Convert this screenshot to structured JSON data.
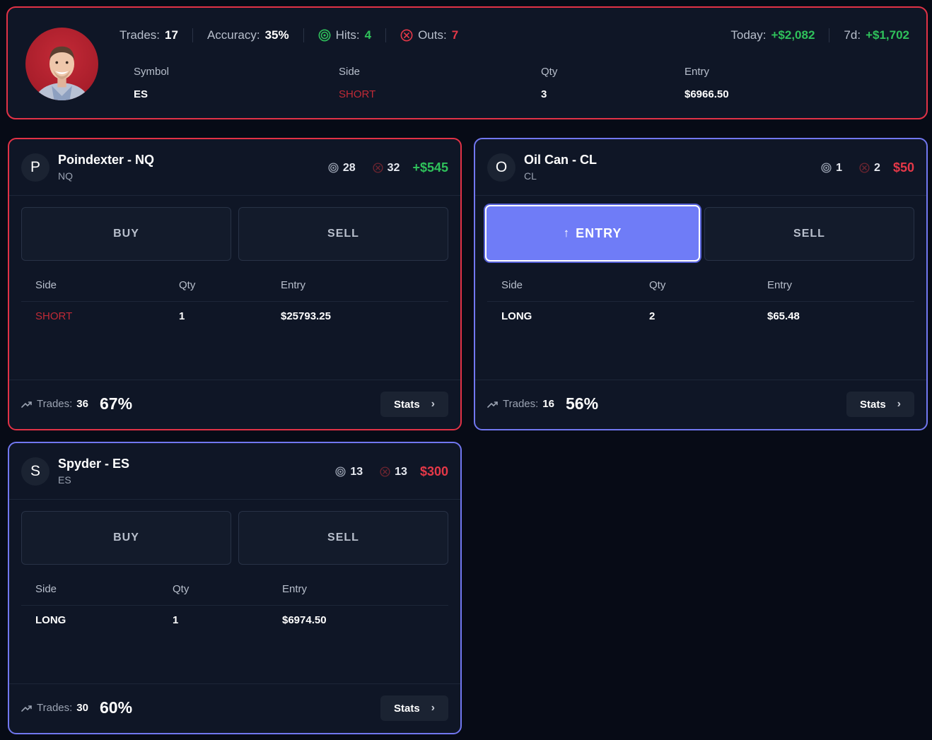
{
  "summary": {
    "trades_label": "Trades:",
    "trades_value": "17",
    "accuracy_label": "Accuracy:",
    "accuracy_value": "35%",
    "hits_label": "Hits:",
    "hits_value": "4",
    "outs_label": "Outs:",
    "outs_value": "7",
    "today_label": "Today:",
    "today_value": "+$2,082",
    "week_label": "7d:",
    "week_value": "+$1,702",
    "columns": {
      "symbol": "Symbol",
      "side": "Side",
      "qty": "Qty",
      "entry": "Entry"
    },
    "position": {
      "symbol": "ES",
      "side": "SHORT",
      "qty": "3",
      "entry": "$6966.50"
    }
  },
  "colors": {
    "red": "#e23246",
    "blue": "#7177f0",
    "green": "#2fc15b",
    "short": "#c02a36"
  },
  "cards": [
    {
      "initial": "P",
      "name": "Poindexter - NQ",
      "symbol": "NQ",
      "hits": "28",
      "outs": "32",
      "pnl": "+$545",
      "buy_label": "BUY",
      "sell_label": "SELL",
      "columns": {
        "side": "Side",
        "qty": "Qty",
        "entry": "Entry"
      },
      "position": {
        "side": "SHORT",
        "qty": "1",
        "entry": "$25793.25"
      },
      "trades_label": "Trades:",
      "trades_value": "36",
      "accuracy": "67%",
      "stats_label": "Stats"
    },
    {
      "initial": "O",
      "name": "Oil Can - CL",
      "symbol": "CL",
      "hits": "1",
      "outs": "2",
      "pnl": "$50",
      "entry_label": "ENTRY",
      "sell_label": "SELL",
      "columns": {
        "side": "Side",
        "qty": "Qty",
        "entry": "Entry"
      },
      "position": {
        "side": "LONG",
        "qty": "2",
        "entry": "$65.48"
      },
      "trades_label": "Trades:",
      "trades_value": "16",
      "accuracy": "56%",
      "stats_label": "Stats"
    },
    {
      "initial": "S",
      "name": "Spyder - ES",
      "symbol": "ES",
      "hits": "13",
      "outs": "13",
      "pnl": "$300",
      "buy_label": "BUY",
      "sell_label": "SELL",
      "columns": {
        "side": "Side",
        "qty": "Qty",
        "entry": "Entry"
      },
      "position": {
        "side": "LONG",
        "qty": "1",
        "entry": "$6974.50"
      },
      "trades_label": "Trades:",
      "trades_value": "30",
      "accuracy": "60%",
      "stats_label": "Stats"
    }
  ]
}
